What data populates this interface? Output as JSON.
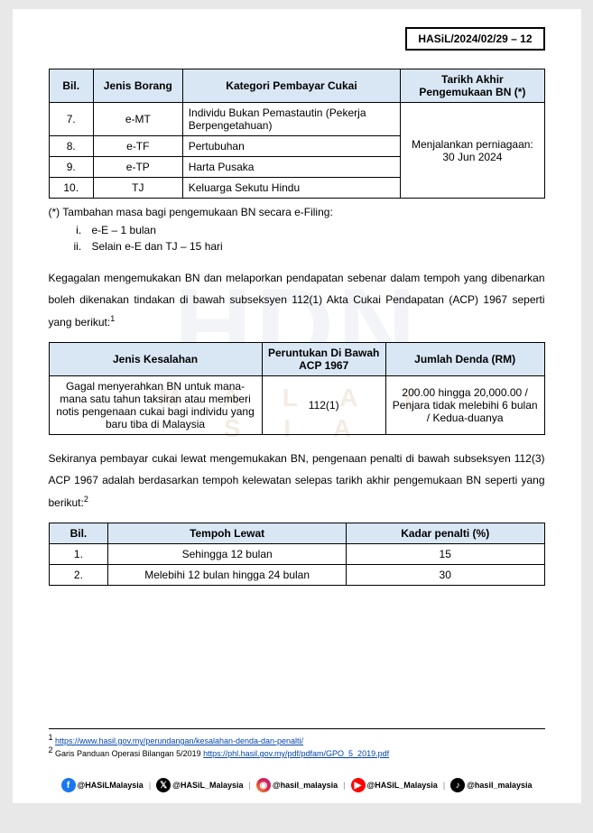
{
  "colors": {
    "header_bg": "#d9e7f5",
    "border": "#000000",
    "link": "#0645ad",
    "page_bg": "#ffffff",
    "body_bg": "#e8e8e8"
  },
  "header_ref": "HASiL/2024/02/29 – 12",
  "table1": {
    "headers": {
      "bil": "Bil.",
      "jenis": "Jenis Borang",
      "kategori": "Kategori Pembayar Cukai",
      "tarikh": "Tarikh Akhir Pengemukaan BN (*)"
    },
    "rows": [
      {
        "bil": "7.",
        "jenis": "e-MT",
        "kategori": "Individu Bukan Pemastautin (Pekerja Berpengetahuan)"
      },
      {
        "bil": "8.",
        "jenis": "e-TF",
        "kategori": "Pertubuhan"
      },
      {
        "bil": "9.",
        "jenis": "e-TP",
        "kategori": "Harta Pusaka"
      },
      {
        "bil": "10.",
        "jenis": "TJ",
        "kategori": "Keluarga Sekutu Hindu"
      }
    ],
    "tarikh_merged": "Menjalankan perniagaan: 30 Jun 2024"
  },
  "note_after_t1": "(*) Tambahan masa bagi pengemukaan BN secara e-Filing:",
  "list_items": [
    "e-E – 1 bulan",
    "Selain e-E dan TJ – 15 hari"
  ],
  "para1": "Kegagalan mengemukakan BN dan melaporkan pendapatan sebenar dalam tempoh yang dibenarkan boleh dikenakan tindakan di bawah subseksyen 112(1) Akta Cukai Pendapatan (ACP) 1967 seperti yang berikut:",
  "para1_sup": "1",
  "table2": {
    "headers": {
      "jenis": "Jenis Kesalahan",
      "peruntukan": "Peruntukan Di Bawah ACP 1967",
      "jumlah": "Jumlah Denda (RM)"
    },
    "row": {
      "jenis": "Gagal menyerahkan BN untuk mana-mana satu  tahun taksiran atau memberi notis pengenaan cukai bagi individu yang baru tiba di Malaysia",
      "peruntukan": "112(1)",
      "jumlah": "200.00 hingga 20,000.00 / Penjara tidak melebihi 6 bulan / Kedua-duanya"
    }
  },
  "para2": "Sekiranya pembayar cukai lewat mengemukakan BN, pengenaan penalti di bawah subseksyen 112(3) ACP 1967 adalah berdasarkan tempoh kelewatan selepas tarikh akhir pengemukaan BN seperti yang berikut:",
  "para2_sup": "2",
  "table3": {
    "headers": {
      "bil": "Bil.",
      "tempoh": "Tempoh Lewat",
      "kadar": "Kadar penalti (%)"
    },
    "rows": [
      {
        "bil": "1.",
        "tempoh": "Sehingga 12 bulan",
        "kadar": "15"
      },
      {
        "bil": "2.",
        "tempoh": "Melebihi 12 bulan hingga 24 bulan",
        "kadar": "30"
      }
    ]
  },
  "footnotes": {
    "f1_sup": "1",
    "f1_link": "https://www.hasil.gov.my/perundangan/kesalahan-denda-dan-penalti/",
    "f2_sup": "2",
    "f2_text": "Garis Panduan Operasi Bilangan 5/2019 ",
    "f2_link": "https://phl.hasil.gov.my/pdf/pdfam/GPO_5_2019.pdf"
  },
  "social": {
    "fb": "@HASiLMalaysia",
    "tw": "@HASiL_Malaysia",
    "ig": "@hasil_malaysia",
    "yt": "@HASiL_Malaysia",
    "tk": "@hasil_malaysia"
  },
  "watermark": {
    "main": "HDN",
    "sub": "M A L A Y S I A"
  }
}
